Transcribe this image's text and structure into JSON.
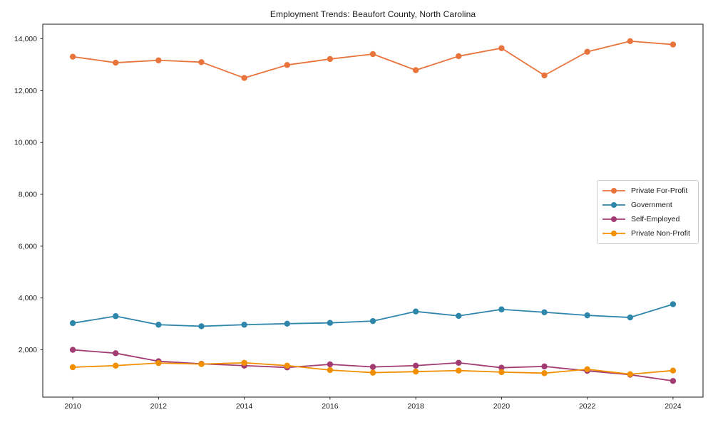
{
  "chart_data": {
    "type": "line",
    "title": "Employment Trends: Beaufort County, North Carolina",
    "x": [
      2010,
      2011,
      2012,
      2013,
      2014,
      2015,
      2016,
      2017,
      2018,
      2019,
      2020,
      2021,
      2022,
      2023,
      2024
    ],
    "series": [
      {
        "name": "Private For-Profit",
        "color": "#E8743B",
        "values": [
          13310,
          13080,
          13170,
          13100,
          12490,
          12990,
          13220,
          13410,
          12790,
          13330,
          13640,
          12590,
          13500,
          13910,
          13780
        ]
      },
      {
        "name": "Government",
        "color": "#2E86AB",
        "values": [
          3030,
          3300,
          2970,
          2910,
          2970,
          3010,
          3040,
          3110,
          3480,
          3310,
          3560,
          3450,
          3330,
          3250,
          3760
        ]
      },
      {
        "name": "Self-Employed",
        "color": "#A23B72",
        "values": [
          2000,
          1870,
          1560,
          1460,
          1390,
          1320,
          1440,
          1340,
          1390,
          1500,
          1310,
          1360,
          1190,
          1040,
          800
        ]
      },
      {
        "name": "Private Non-Profit",
        "color": "#F18F01",
        "values": [
          1330,
          1390,
          1490,
          1450,
          1500,
          1390,
          1220,
          1120,
          1160,
          1200,
          1140,
          1100,
          1250,
          1060,
          1200
        ]
      }
    ],
    "xlabel": "",
    "ylabel": "",
    "xticks": [
      2010,
      2012,
      2014,
      2016,
      2018,
      2020,
      2022,
      2024
    ],
    "yticks": [
      2000,
      4000,
      6000,
      8000,
      10000,
      12000,
      14000
    ],
    "xlim": [
      2009.3,
      2024.7
    ],
    "ylim": [
      176,
      14564
    ],
    "grid": false,
    "legend_position": "center right",
    "marker": "circle",
    "axis_color": "#1a1a1a",
    "background": "#ffffff"
  }
}
